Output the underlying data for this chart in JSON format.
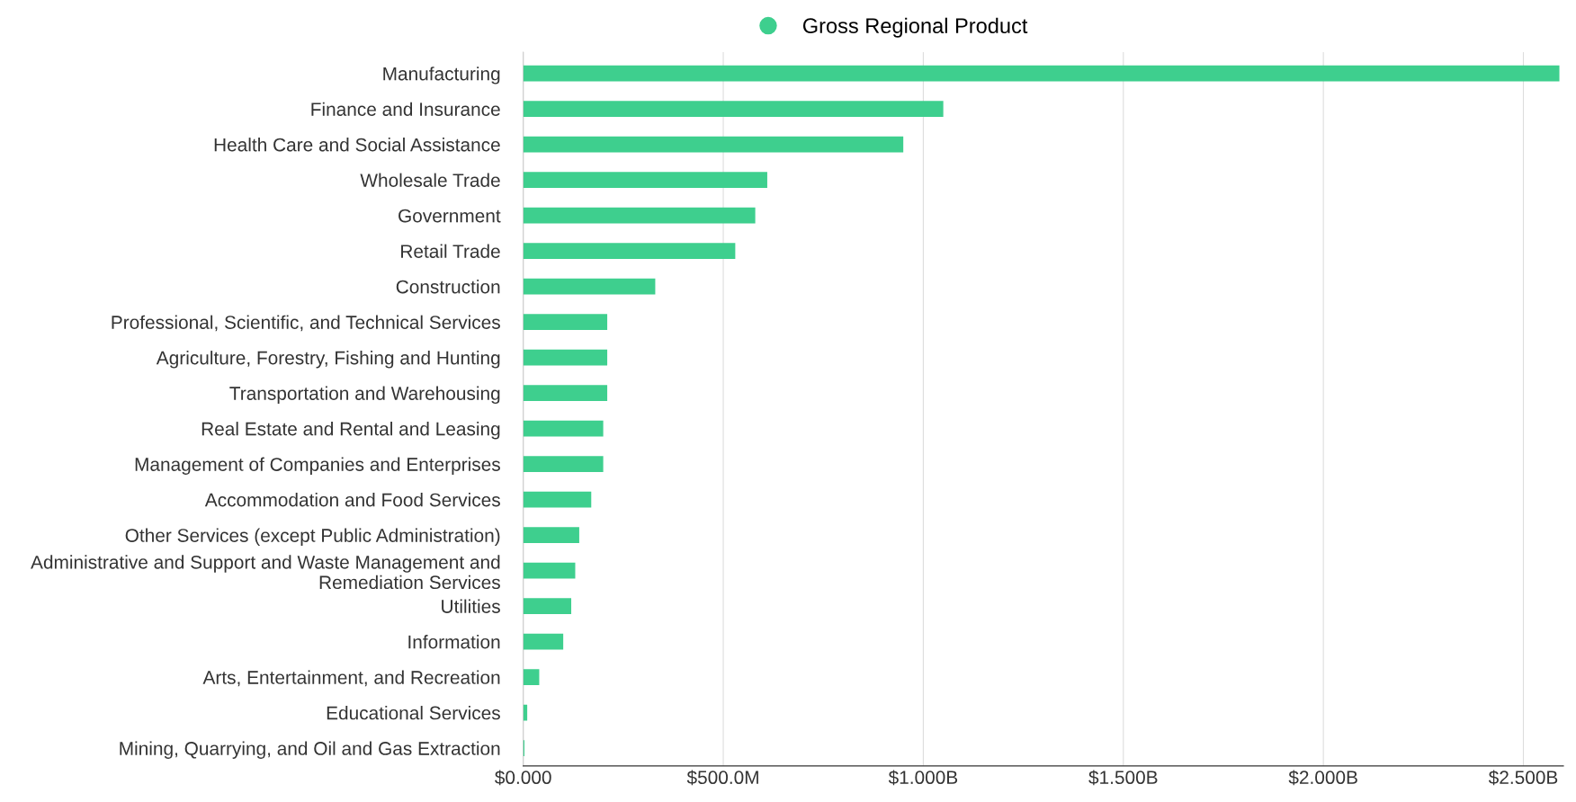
{
  "chart_data": {
    "type": "bar",
    "orientation": "horizontal",
    "categories": [
      "Manufacturing",
      "Finance and Insurance",
      "Health Care and Social Assistance",
      "Wholesale Trade",
      "Government",
      "Retail Trade",
      "Construction",
      "Professional, Scientific, and Technical Services",
      "Agriculture, Forestry, Fishing and Hunting",
      "Transportation and Warehousing",
      "Real Estate and Rental and Leasing",
      "Management of Companies and Enterprises",
      "Accommodation and Food Services",
      "Other Services (except Public Administration)",
      "Administrative and Support and Waste Management and\nRemediation Services",
      "Utilities",
      "Information",
      "Arts, Entertainment, and Recreation",
      "Educational Services",
      "Mining, Quarrying, and Oil and Gas Extraction"
    ],
    "series": [
      {
        "name": "Gross Regional Product",
        "color": "#3ecf8e",
        "values": [
          2590000000,
          1050000000,
          950000000,
          610000000,
          580000000,
          530000000,
          330000000,
          210000000,
          210000000,
          210000000,
          200000000,
          200000000,
          170000000,
          140000000,
          130000000,
          120000000,
          100000000,
          40000000,
          10000000,
          3000000
        ]
      }
    ],
    "xlim": [
      0,
      2600000000
    ],
    "xticks": [
      {
        "value": 0,
        "label": "$0.000"
      },
      {
        "value": 500000000,
        "label": "$500.0M"
      },
      {
        "value": 1000000000,
        "label": "$1.000B"
      },
      {
        "value": 1500000000,
        "label": "$1.500B"
      },
      {
        "value": 2000000000,
        "label": "$2.000B"
      },
      {
        "value": 2500000000,
        "label": "$2.500B"
      }
    ],
    "grid": "x",
    "legend": "top",
    "marker": "circle"
  }
}
